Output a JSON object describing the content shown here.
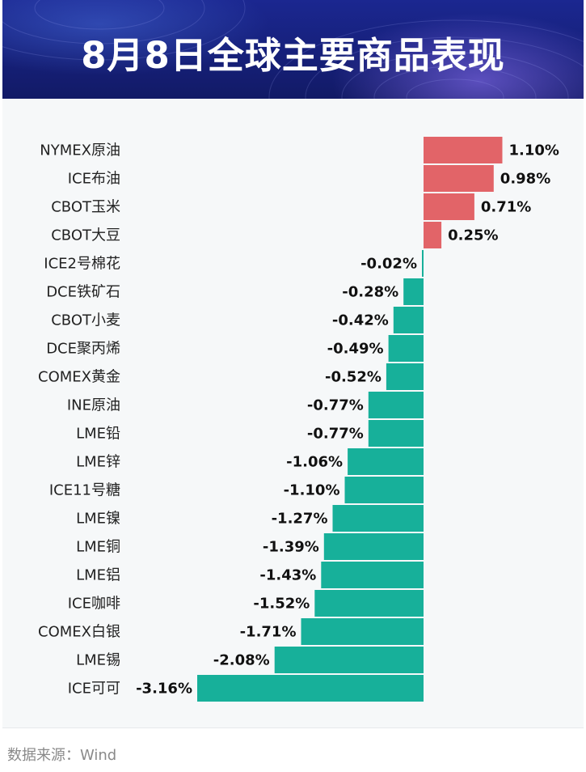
{
  "header": {
    "title": "8月8日全球主要商品表现"
  },
  "source": "数据来源：Wind",
  "colors": {
    "positive": "#e26468",
    "negative": "#17b09a"
  },
  "chart_data": {
    "type": "bar",
    "orientation": "horizontal",
    "title": "8月8日全球主要商品表现",
    "unit": "%",
    "categories": [
      "NYMEX原油",
      "ICE布油",
      "CBOT玉米",
      "CBOT大豆",
      "ICE2号棉花",
      "DCE铁矿石",
      "CBOT小麦",
      "DCE聚丙烯",
      "COMEX黄金",
      "INE原油",
      "LME铅",
      "LME锌",
      "ICE11号糖",
      "LME镍",
      "LME铜",
      "LME铝",
      "ICE咖啡",
      "COMEX白银",
      "LME锡",
      "ICE可可"
    ],
    "values": [
      1.1,
      0.98,
      0.71,
      0.25,
      -0.02,
      -0.28,
      -0.42,
      -0.49,
      -0.52,
      -0.77,
      -0.77,
      -1.06,
      -1.1,
      -1.27,
      -1.39,
      -1.43,
      -1.52,
      -1.71,
      -2.08,
      -3.16
    ],
    "labels": [
      "1.10%",
      "0.98%",
      "0.71%",
      "0.25%",
      "-0.02%",
      "-0.28%",
      "-0.42%",
      "-0.49%",
      "-0.52%",
      "-0.77%",
      "-0.77%",
      "-1.06%",
      "-1.10%",
      "-1.27%",
      "-1.39%",
      "-1.43%",
      "-1.52%",
      "-1.71%",
      "-2.08%",
      "-3.16%"
    ]
  }
}
